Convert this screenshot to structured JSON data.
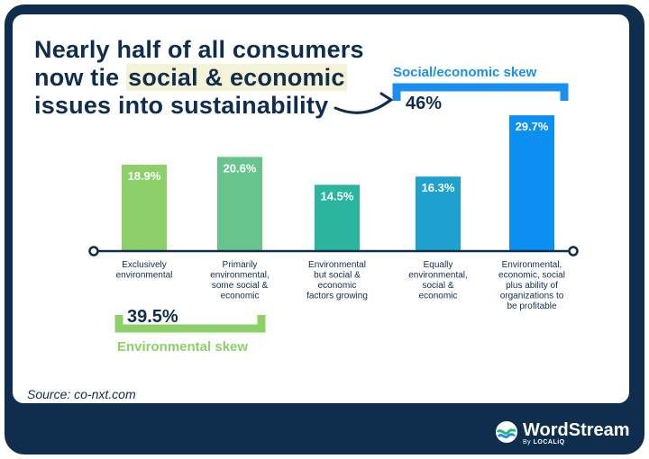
{
  "header": {
    "title_line1": "Nearly half of all consumers",
    "title_line2_pre": "now tie ",
    "title_line2_hl": "social & economic",
    "title_line3": "issues into sustainability"
  },
  "source": "Source: co-nxt.com",
  "brand": {
    "name": "WordStream",
    "sub_by": "By ",
    "sub_name": "LOCALiQ"
  },
  "groups": {
    "social": {
      "label": "Social/economic skew",
      "value": "46%"
    },
    "environmental": {
      "label": "Environmental skew",
      "value": "39.5%"
    }
  },
  "colors": {
    "navy": "#0f2d4d",
    "bar1": "#8cd06a",
    "bar2": "#66c48c",
    "bar3": "#2ab59e",
    "bar4": "#1ea1cf",
    "bar5": "#0b8ff2",
    "green_group": "#8cd06a",
    "blue_group": "#1a8ff0"
  },
  "chart_data": {
    "type": "bar",
    "title": "Nearly half of all consumers now tie social & economic issues into sustainability",
    "categories": [
      [
        "Exclusively",
        "environmental"
      ],
      [
        "Primarily",
        "environmental,",
        "some social &",
        "economic"
      ],
      [
        "Environmental",
        "but social &",
        "economic",
        "factors growing"
      ],
      [
        "Equally",
        "environmental,",
        "social &",
        "economic"
      ],
      [
        "Environmental,",
        "economic, social",
        "plus ability of",
        "organizations to",
        "be profitable"
      ]
    ],
    "values": [
      18.9,
      20.6,
      14.5,
      16.3,
      29.7
    ],
    "value_labels": [
      "18.9%",
      "20.6%",
      "14.5%",
      "16.3%",
      "29.7%"
    ],
    "ylim": [
      0,
      30
    ],
    "xlabel": "",
    "ylabel": ""
  }
}
